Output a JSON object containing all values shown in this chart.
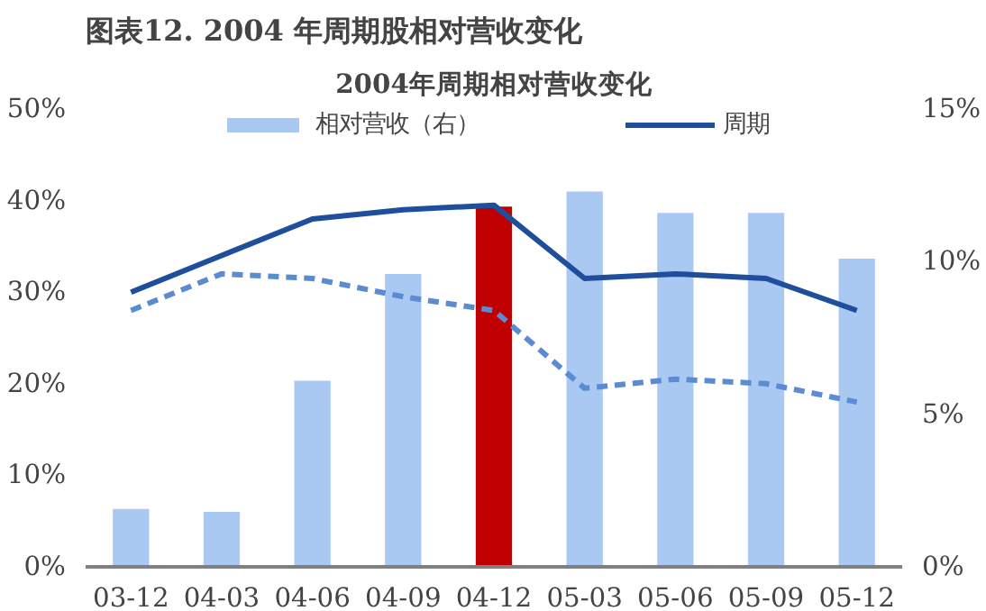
{
  "chart_data": {
    "type": "bar",
    "title": "图表12.  2004 年周期股相对营收变化",
    "subtitle": "2004年周期相对营收变化",
    "categories": [
      "03-12",
      "04-03",
      "04-06",
      "04-09",
      "04-12",
      "05-03",
      "05-06",
      "05-09",
      "05-12"
    ],
    "series": [
      {
        "name": "相对营收（右）",
        "axis": "y2",
        "color": "#a9c8f2",
        "colors": [
          "#a9c8f2",
          "#a9c8f2",
          "#a9c8f2",
          "#a9c8f2",
          "#c00000",
          "#a9c8f2",
          "#a9c8f2",
          "#a9c8f2",
          "#a9c8f2"
        ],
        "values": [
          1.9,
          1.8,
          6.1,
          9.6,
          11.8,
          12.3,
          11.6,
          11.6,
          10.1
        ]
      },
      {
        "name": "周期",
        "type": "line",
        "color": "#1f4e9c",
        "line_style": "solid",
        "values": [
          30,
          34,
          38,
          39,
          39.5,
          31.5,
          32,
          31.5,
          28
        ]
      },
      {
        "type": "line",
        "color": "#5b8bd0",
        "line_style": "dashed",
        "values": [
          28,
          32,
          31.5,
          29.5,
          28,
          19.5,
          20.5,
          20,
          18
        ]
      }
    ],
    "ylim": [
      0,
      50
    ],
    "yticks": [
      {
        "value": 0,
        "label": "0%"
      },
      {
        "value": 10,
        "label": "10%"
      },
      {
        "value": 20,
        "label": "20%"
      },
      {
        "value": 30,
        "label": "30%"
      },
      {
        "value": 40,
        "label": "40%"
      },
      {
        "value": 50,
        "label": "50%"
      }
    ],
    "y2lim": [
      0,
      15
    ],
    "y2ticks": [
      {
        "value": 0,
        "label": "0%"
      },
      {
        "value": 5,
        "label": "5%"
      },
      {
        "value": 10,
        "label": "10%"
      },
      {
        "value": 15,
        "label": "15%"
      }
    ],
    "grid": false,
    "legend": "top"
  }
}
